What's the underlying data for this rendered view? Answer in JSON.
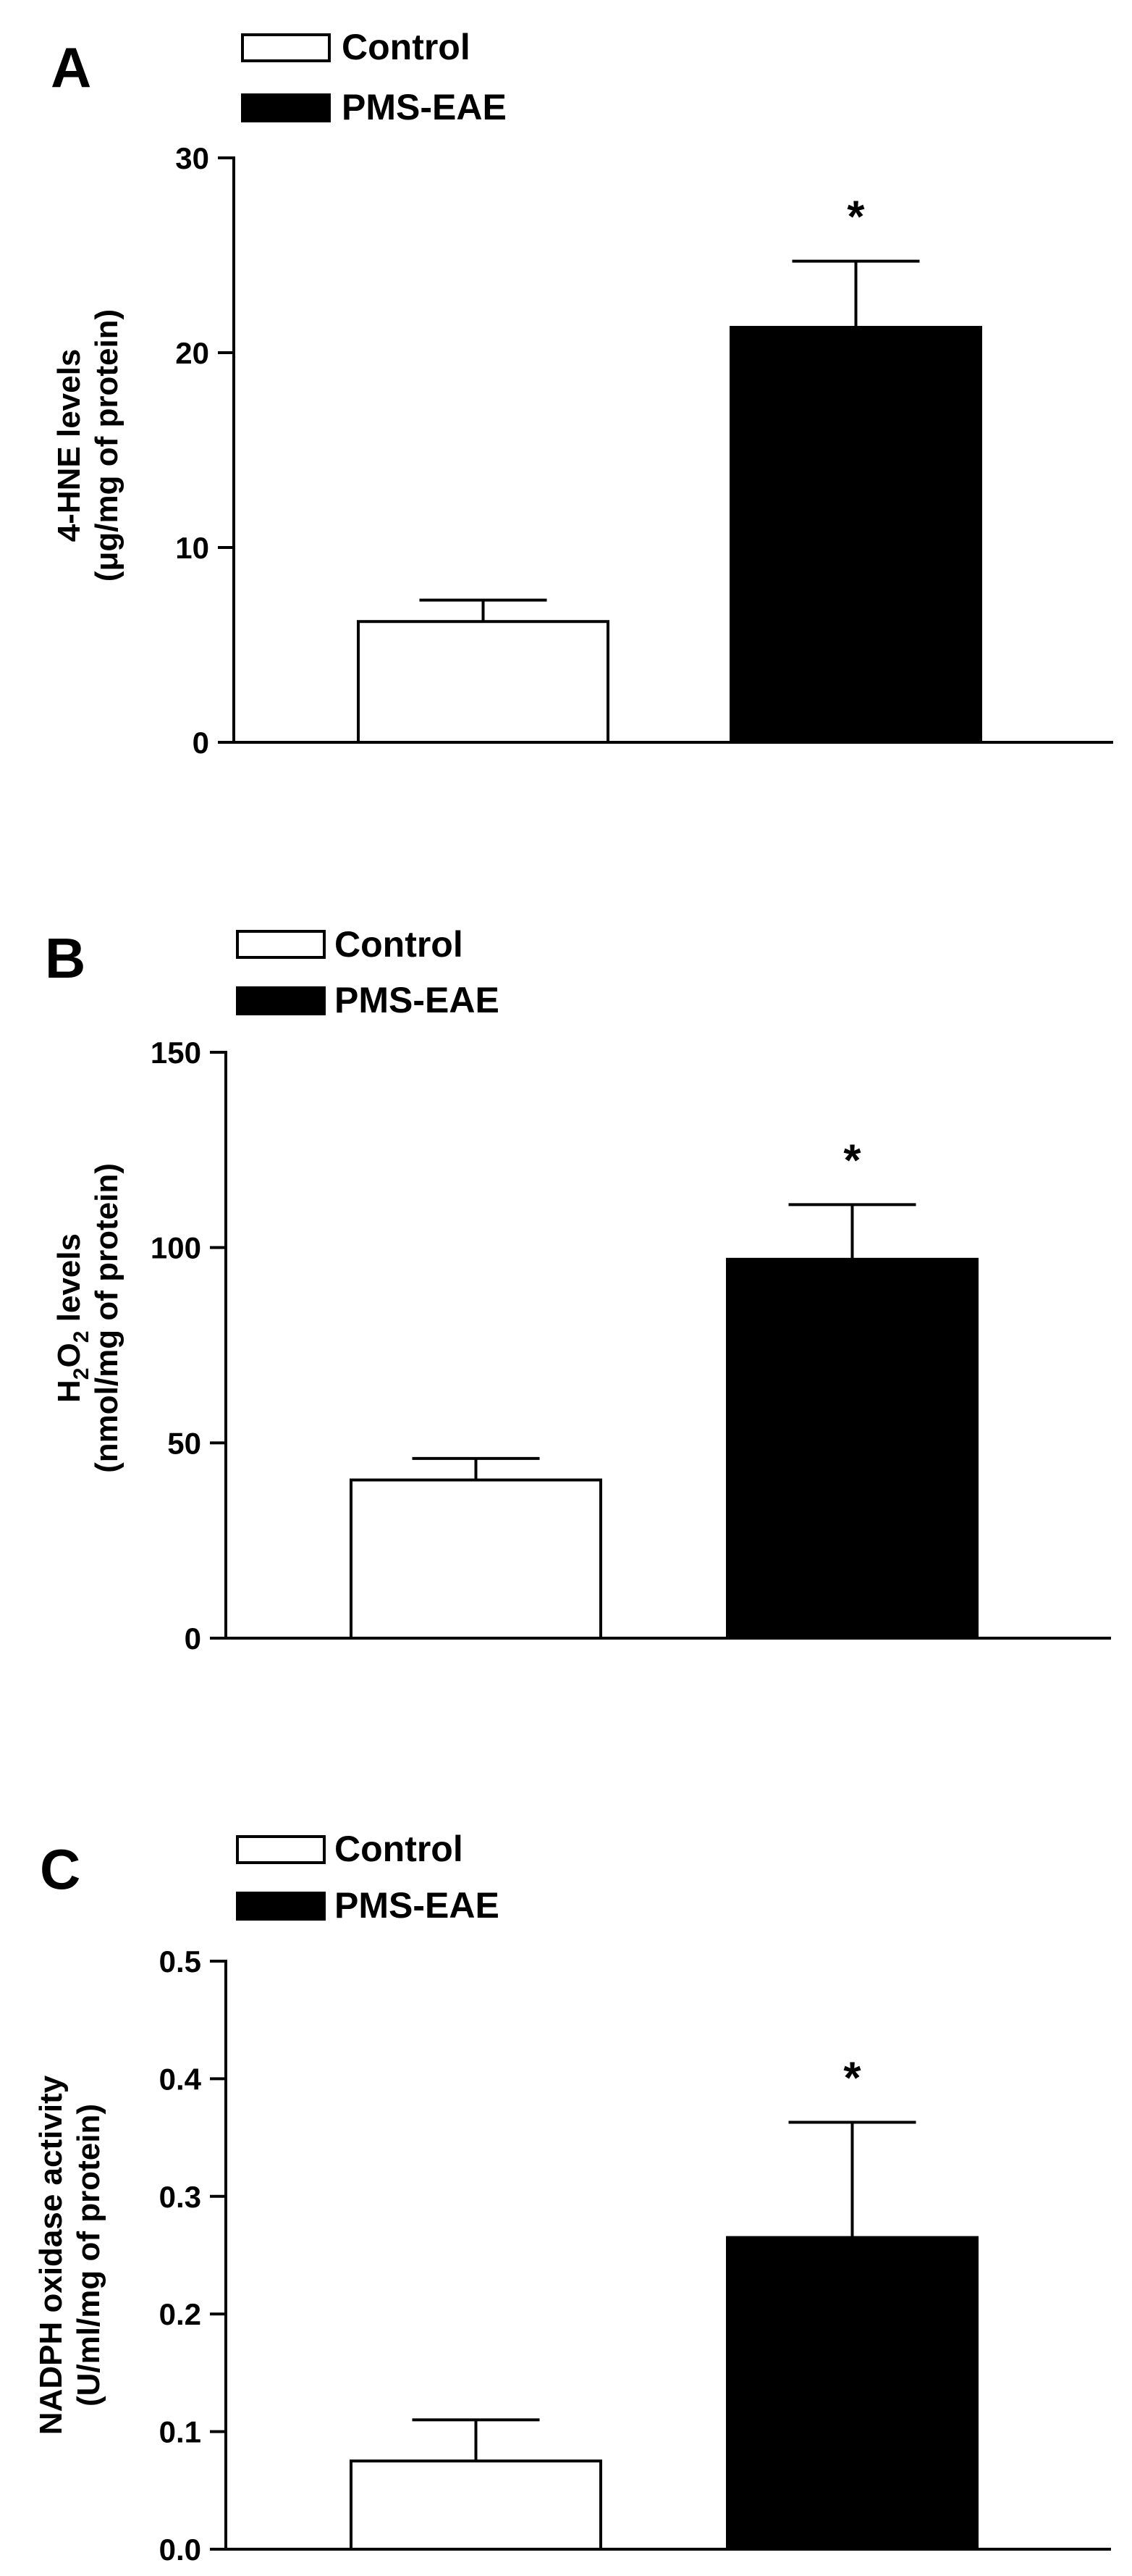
{
  "legend": {
    "control": "Control",
    "treated": "PMS-EAE"
  },
  "colors": {
    "control": "#ffffff",
    "treated": "#000000",
    "stroke": "#000000"
  },
  "chart_data": [
    {
      "type": "bar",
      "panel": "A",
      "categories": [
        "Control",
        "PMS-EAE"
      ],
      "values": [
        6.2,
        21.3
      ],
      "errors": [
        1.1,
        3.4
      ],
      "significance": [
        "",
        "*"
      ],
      "ylabel_line1": "4-HNE levels",
      "ylabel_line2": "(μg/mg of protein)",
      "ylim": [
        0,
        30
      ],
      "yticks": [
        "0",
        "10",
        "20",
        "30"
      ],
      "grid": false,
      "legend_position": "top-left"
    },
    {
      "type": "bar",
      "panel": "B",
      "categories": [
        "Control",
        "PMS-EAE"
      ],
      "values": [
        40.5,
        97
      ],
      "errors": [
        5.5,
        14
      ],
      "significance": [
        "",
        "*"
      ],
      "ylabel_line1": "H2O2 levels",
      "ylabel_line2": "(nmol/mg of protein)",
      "ylim": [
        0,
        150
      ],
      "yticks": [
        "0",
        "50",
        "100",
        "150"
      ],
      "grid": false,
      "legend_position": "top-left"
    },
    {
      "type": "bar",
      "panel": "C",
      "categories": [
        "Control",
        "PMS-EAE"
      ],
      "values": [
        0.075,
        0.265
      ],
      "errors": [
        0.035,
        0.098
      ],
      "significance": [
        "",
        "*"
      ],
      "ylabel_line1": "NADPH oxidase activity",
      "ylabel_line2": "(U/ml/mg of protein)",
      "ylim": [
        0,
        0.5
      ],
      "yticks": [
        "0.0",
        "0.1",
        "0.2",
        "0.3",
        "0.4",
        "0.5"
      ],
      "grid": false,
      "legend_position": "top-left"
    }
  ]
}
